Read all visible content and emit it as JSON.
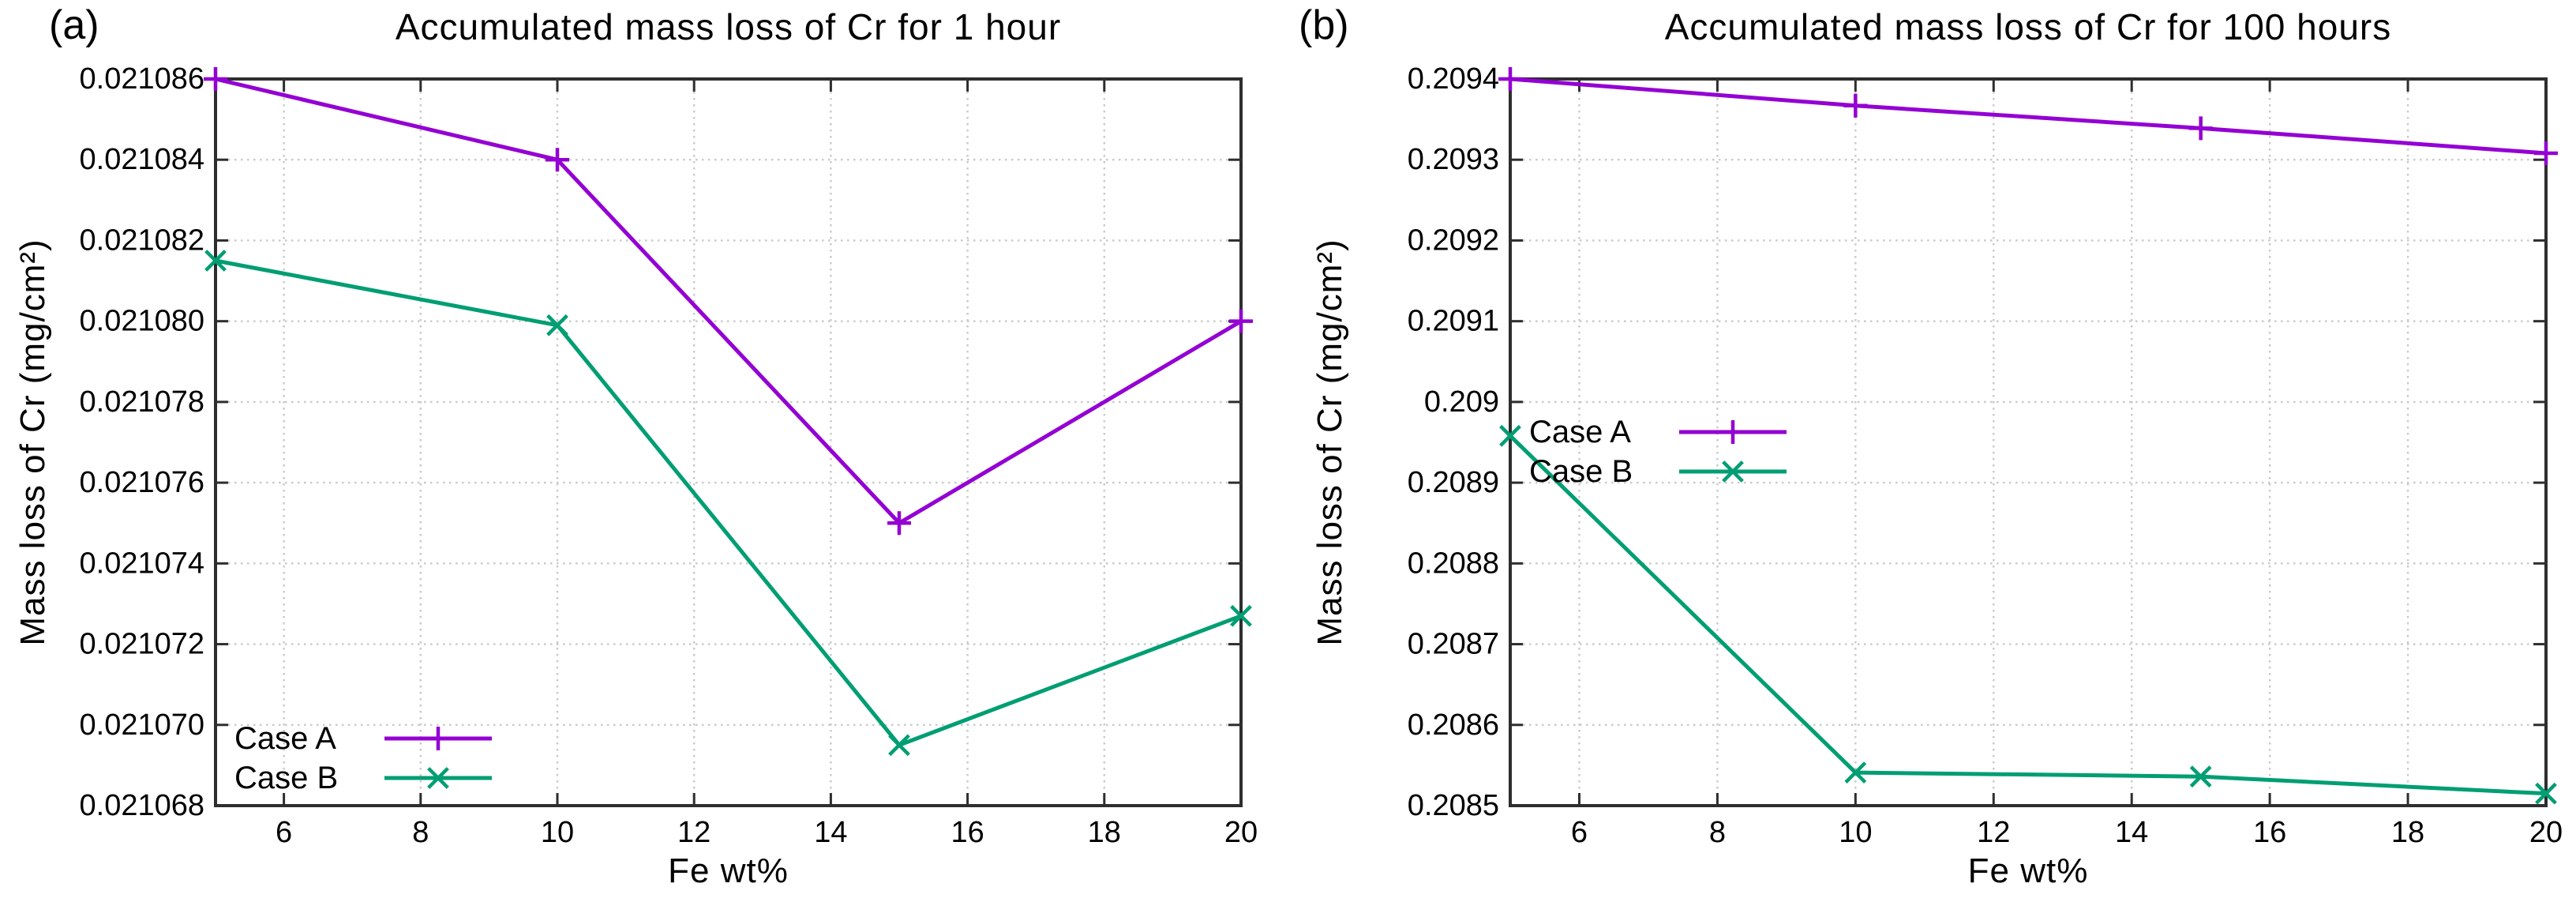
{
  "figure": {
    "background": "#ffffff",
    "text_color": "#000000",
    "grid_color": "#c9c9c9",
    "border_color": "#2e2e2e",
    "accent_purple": "#9400d3",
    "accent_green": "#009e73"
  },
  "chart_data": [
    {
      "type": "line",
      "panel_label": "(a)",
      "title": "Accumulated mass loss of Cr for 1 hour",
      "xlabel": "Fe wt%",
      "ylabel": "Mass loss of Cr (mg/cm²)",
      "xlim": [
        5,
        20
      ],
      "ylim": [
        0.021068,
        0.021086
      ],
      "xticks": [
        6,
        8,
        10,
        12,
        14,
        16,
        18,
        20
      ],
      "yticks": [
        0.021068,
        0.02107,
        0.021072,
        0.021074,
        0.021076,
        0.021078,
        0.02108,
        0.021082,
        0.021084,
        0.021086
      ],
      "ytick_labels": [
        "0.021068",
        "0.021070",
        "0.021072",
        "0.021074",
        "0.021076",
        "0.021078",
        "0.021080",
        "0.021082",
        "0.021084",
        "0.021086"
      ],
      "grid": true,
      "legend_position": "bottom-left",
      "series": [
        {
          "name": "Case A",
          "color": "#9400d3",
          "marker": "plus",
          "x": [
            5,
            10,
            15,
            20
          ],
          "y": [
            0.021086,
            0.021084,
            0.021075,
            0.02108
          ]
        },
        {
          "name": "Case B",
          "color": "#009e73",
          "marker": "cross",
          "x": [
            5,
            10,
            15,
            20
          ],
          "y": [
            0.0210815,
            0.0210799,
            0.0210695,
            0.0210727
          ]
        }
      ]
    },
    {
      "type": "line",
      "panel_label": "(b)",
      "title": "Accumulated mass loss of Cr for 100 hours",
      "xlabel": "Fe wt%",
      "ylabel": "Mass loss of Cr (mg/cm²)",
      "xlim": [
        5,
        20
      ],
      "ylim": [
        0.2085,
        0.2094
      ],
      "xticks": [
        6,
        8,
        10,
        12,
        14,
        16,
        18,
        20
      ],
      "yticks": [
        0.2085,
        0.2086,
        0.2087,
        0.2088,
        0.2089,
        0.209,
        0.2091,
        0.2092,
        0.2093,
        0.2094
      ],
      "ytick_labels": [
        "0.2085",
        "0.2086",
        "0.2087",
        "0.2088",
        "0.2089",
        "0.209",
        "0.2091",
        "0.2092",
        "0.2093",
        "0.2094"
      ],
      "grid": true,
      "legend_position": "middle-left",
      "series": [
        {
          "name": "Case A",
          "color": "#9400d3",
          "marker": "plus",
          "x": [
            5,
            10,
            15,
            20
          ],
          "y": [
            0.2094,
            0.209367,
            0.209339,
            0.209308
          ]
        },
        {
          "name": "Case B",
          "color": "#009e73",
          "marker": "cross",
          "x": [
            5,
            10,
            15,
            20
          ],
          "y": [
            0.208958,
            0.208541,
            0.208536,
            0.208515
          ]
        }
      ]
    }
  ]
}
